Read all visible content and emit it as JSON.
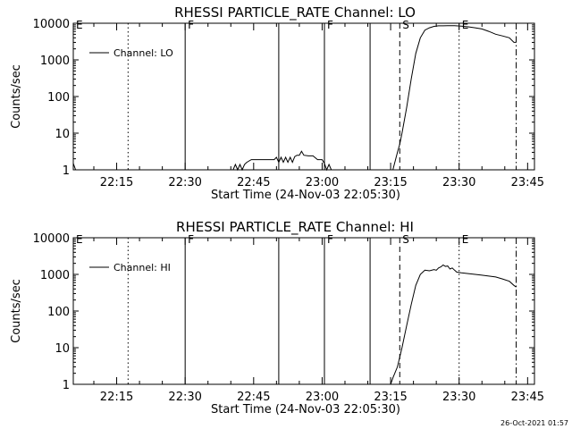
{
  "footer_timestamp": "26-Oct-2021 01:57",
  "chart_data": [
    {
      "type": "line",
      "title": "RHESSI PARTICLE_RATE Channel: LO",
      "xlabel": "Start Time (24-Nov-03 22:05:30)",
      "ylabel": "Counts/sec",
      "yscale": "log",
      "ylim": [
        1,
        10000
      ],
      "xlim": [
        "22:05:30",
        "23:46:30"
      ],
      "x_ticks": [
        "22:15",
        "22:30",
        "22:45",
        "23:00",
        "23:15",
        "23:30",
        "23:45"
      ],
      "y_ticks": [
        "1",
        "10",
        "100",
        "1000",
        "10000"
      ],
      "legend": "Channel: LO",
      "legend_position": "top-left",
      "markers": [
        {
          "time": "22:05:30",
          "style": "dotted",
          "label": "E"
        },
        {
          "time": "22:17:30",
          "style": "dotted",
          "label": ""
        },
        {
          "time": "22:30:00",
          "style": "solid",
          "label": "F"
        },
        {
          "time": "22:50:30",
          "style": "solid",
          "label": ""
        },
        {
          "time": "23:00:30",
          "style": "solid",
          "label": "F"
        },
        {
          "time": "23:10:30",
          "style": "solid",
          "label": ""
        },
        {
          "time": "23:17:00",
          "style": "dashed",
          "label": "S"
        },
        {
          "time": "23:30:00",
          "style": "dotted",
          "label": "E"
        },
        {
          "time": "23:42:30",
          "style": "dashdot",
          "label": ""
        }
      ],
      "series": [
        {
          "x": [
            "22:05:30",
            "22:06:00",
            "22:06:30",
            "22:40:30",
            "22:41:00",
            "22:41:30",
            "22:42:00",
            "22:42:30",
            "22:43:00",
            "22:43:30",
            "22:44:30",
            "22:46:30",
            "22:49:30",
            "22:50:00",
            "22:50:30",
            "22:51:00",
            "22:51:30",
            "22:52:00",
            "22:52:30",
            "22:53:00",
            "22:53:30",
            "22:54:00",
            "22:54:30",
            "22:55:00",
            "22:55:30",
            "22:56:00",
            "22:57:00",
            "22:58:00",
            "22:59:00",
            "23:00:00",
            "23:00:30",
            "23:01:00",
            "23:01:30",
            "23:02:00",
            "23:15:30",
            "23:16:30",
            "23:17:00",
            "23:17:30",
            "23:18:30",
            "23:19:30",
            "23:20:30",
            "23:21:30",
            "23:22:30",
            "23:23:30",
            "23:24:30",
            "23:25:30",
            "23:26:30",
            "23:27:30",
            "23:29:00",
            "23:30:30",
            "23:32:00",
            "23:33:30",
            "23:35:00",
            "23:36:30",
            "23:38:00",
            "23:39:30",
            "23:41:00",
            "23:42:00",
            "23:42:30"
          ],
          "y": [
            1.5,
            1.0,
            1.0,
            1.0,
            1.4,
            1.0,
            1.4,
            1.0,
            1.4,
            1.6,
            1.9,
            1.9,
            1.9,
            2.2,
            1.6,
            2.2,
            1.6,
            2.2,
            1.6,
            2.2,
            1.6,
            2.3,
            2.5,
            2.5,
            3.2,
            2.5,
            2.4,
            2.4,
            1.9,
            1.9,
            1.5,
            1.0,
            1.4,
            1.0,
            1.0,
            3.0,
            5.0,
            10,
            50,
            300,
            1500,
            4000,
            6500,
            7500,
            8200,
            8500,
            8500,
            8600,
            8600,
            8300,
            8000,
            7500,
            7000,
            6000,
            5000,
            4500,
            4000,
            3000,
            3000
          ]
        }
      ]
    },
    {
      "type": "line",
      "title": "RHESSI PARTICLE_RATE Channel: HI",
      "xlabel": "Start Time (24-Nov-03 22:05:30)",
      "ylabel": "Counts/sec",
      "yscale": "log",
      "ylim": [
        1,
        10000
      ],
      "xlim": [
        "22:05:30",
        "23:46:30"
      ],
      "x_ticks": [
        "22:15",
        "22:30",
        "22:45",
        "23:00",
        "23:15",
        "23:30",
        "23:45"
      ],
      "y_ticks": [
        "1",
        "10",
        "100",
        "1000",
        "10000"
      ],
      "legend": "Channel: HI",
      "legend_position": "top-left",
      "markers": [
        {
          "time": "22:05:30",
          "style": "dotted",
          "label": "E"
        },
        {
          "time": "22:17:30",
          "style": "dotted",
          "label": ""
        },
        {
          "time": "22:30:00",
          "style": "solid",
          "label": "F"
        },
        {
          "time": "22:50:30",
          "style": "solid",
          "label": ""
        },
        {
          "time": "23:00:30",
          "style": "solid",
          "label": "F"
        },
        {
          "time": "23:10:30",
          "style": "solid",
          "label": ""
        },
        {
          "time": "23:17:00",
          "style": "dashed",
          "label": "S"
        },
        {
          "time": "23:30:00",
          "style": "dotted",
          "label": "E"
        },
        {
          "time": "23:42:30",
          "style": "dashdot",
          "label": ""
        }
      ],
      "series": [
        {
          "x": [
            "23:15:00",
            "23:15:30",
            "23:16:30",
            "23:17:30",
            "23:18:30",
            "23:19:30",
            "23:20:30",
            "23:21:30",
            "23:22:30",
            "23:23:30",
            "23:24:30",
            "23:25:00",
            "23:25:30",
            "23:26:00",
            "23:26:30",
            "23:27:00",
            "23:27:30",
            "23:28:00",
            "23:28:30",
            "23:29:00",
            "23:29:30",
            "23:30:30",
            "23:32:00",
            "23:33:30",
            "23:35:00",
            "23:36:30",
            "23:38:00",
            "23:39:30",
            "23:41:00",
            "23:42:00",
            "23:42:30"
          ],
          "y": [
            1.0,
            1.5,
            3.0,
            10,
            40,
            150,
            500,
            1000,
            1300,
            1250,
            1350,
            1300,
            1500,
            1600,
            1800,
            1650,
            1700,
            1400,
            1500,
            1300,
            1150,
            1100,
            1050,
            1000,
            950,
            900,
            850,
            750,
            650,
            500,
            450
          ]
        }
      ]
    }
  ]
}
